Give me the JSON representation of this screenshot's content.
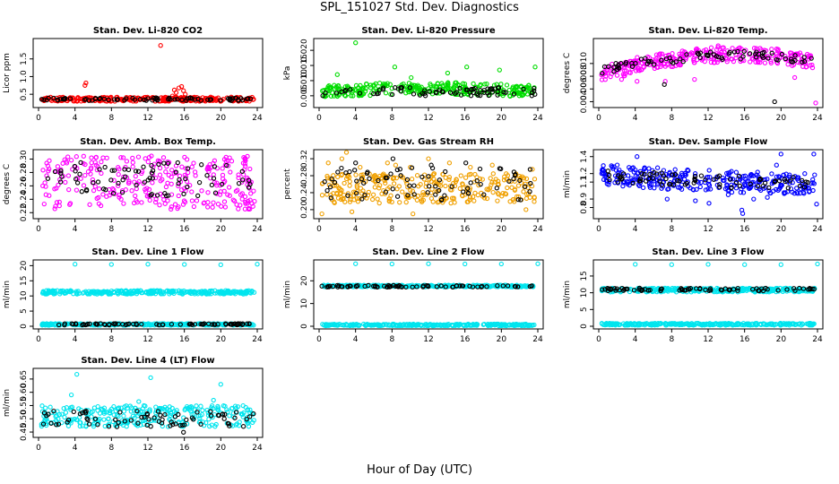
{
  "figure": {
    "title": "SPL_151027  Std. Dev. Diagnostics",
    "xlabel": "Hour of Day (UTC)"
  },
  "colors": {
    "red": "#ff0000",
    "green": "#00dd00",
    "magenta": "#ff00ff",
    "orange": "#f0a000",
    "blue": "#0000ff",
    "cyan": "#00e5ee",
    "black": "#000000"
  },
  "chart_data": [
    {
      "type": "scatter",
      "title": "Stan. Dev. Li-820 CO2",
      "ylabel": "Licor ppm",
      "xlim": [
        0,
        24
      ],
      "xticks": [
        "0",
        "4",
        "8",
        "12",
        "16",
        "20",
        "24"
      ],
      "ylim": [
        0.2,
        2.0
      ],
      "yticks": [
        "0.5",
        "1.0",
        "1.5"
      ],
      "ytick_values": [
        0.5,
        1.0,
        1.5
      ],
      "grid": false,
      "series": [
        {
          "color": "#ff0000",
          "band": [
            0.3,
            0.42
          ],
          "points": [
            [
              5.1,
              0.75
            ],
            [
              5.2,
              0.82
            ],
            [
              13.4,
              1.88
            ],
            [
              14.7,
              0.45
            ],
            [
              15.1,
              0.55
            ],
            [
              15.4,
              0.68
            ],
            [
              15.7,
              0.72
            ],
            [
              15.9,
              0.6
            ],
            [
              16.1,
              0.5
            ],
            [
              14.9,
              0.62
            ]
          ]
        },
        {
          "color": "#000000",
          "band": [
            0.32,
            0.4
          ],
          "points": []
        }
      ]
    },
    {
      "type": "scatter",
      "title": "Stan. Dev. Li-820 Pressure",
      "ylabel": "kPa",
      "xlim": [
        0,
        24
      ],
      "xticks": [
        "0",
        "4",
        "8",
        "12",
        "16",
        "20",
        "24"
      ],
      "ylim": [
        0.002,
        0.023
      ],
      "yticks": [
        "0.005",
        "0.010",
        "0.015",
        "0.020"
      ],
      "ytick_values": [
        0.005,
        0.01,
        0.015,
        0.02
      ],
      "grid": false,
      "series": [
        {
          "color": "#00dd00",
          "band": [
            0.0045,
            0.0085
          ],
          "trend": [
            0.0,
            0.0005,
            0.001,
            0.001,
            0.0005,
            0.0
          ],
          "points": [
            [
              4.0,
              0.0225
            ],
            [
              8.3,
              0.0145
            ],
            [
              14.1,
              0.0125
            ],
            [
              16.2,
              0.0145
            ],
            [
              19.8,
              0.0135
            ],
            [
              23.7,
              0.0145
            ],
            [
              2.0,
              0.012
            ],
            [
              10.1,
              0.011
            ]
          ]
        },
        {
          "color": "#000000",
          "band": [
            0.005,
            0.008
          ],
          "points": []
        }
      ]
    },
    {
      "type": "scatter",
      "title": "Stan. Dev. Li-820 Temp.",
      "ylabel": "degrees C",
      "xlim": [
        0,
        24
      ],
      "xticks": [
        "0",
        "4",
        "8",
        "12",
        "16",
        "20",
        "24"
      ],
      "ylim": [
        0.0035,
        0.0135
      ],
      "yticks": [
        "0.004",
        "0.006",
        "0.008",
        "0.010"
      ],
      "ytick_values": [
        0.004,
        0.006,
        0.008,
        0.01
      ],
      "grid": false,
      "series": [
        {
          "color": "#ff00ff",
          "band": [
            0.0088,
            0.0112
          ],
          "trend": [
            -0.0018,
            0.0,
            0.001,
            0.0015,
            0.0012,
            0.0002
          ],
          "points": [
            [
              0.5,
              0.0083
            ],
            [
              2.5,
              0.0075
            ],
            [
              4.2,
              0.0072
            ],
            [
              7.3,
              0.0072
            ],
            [
              10.5,
              0.0075
            ],
            [
              23.8,
              0.0038
            ],
            [
              21.5,
              0.0078
            ],
            [
              13.1,
              0.0128
            ]
          ]
        },
        {
          "color": "#000000",
          "band": [
            0.0095,
            0.0108
          ],
          "trend": [
            -0.0012,
            0.0,
            0.0008,
            0.0012,
            0.0009,
            0.0002
          ],
          "points": [
            [
              7.2,
              0.0067
            ],
            [
              19.3,
              0.004
            ],
            [
              12.0,
              0.0112
            ]
          ]
        }
      ]
    },
    {
      "type": "scatter",
      "title": "Stan. Dev. Amb. Box Temp.",
      "ylabel": "degrees C",
      "xlim": [
        0,
        24
      ],
      "xticks": [
        "0",
        "4",
        "8",
        "12",
        "16",
        "20",
        "24"
      ],
      "ylim": [
        0.215,
        0.31
      ],
      "yticks": [
        "0.22",
        "0.24",
        "0.26",
        "0.28",
        "0.30"
      ],
      "ytick_values": [
        0.22,
        0.24,
        0.26,
        0.28,
        0.3
      ],
      "grid": false,
      "series": [
        {
          "color": "#ff00ff",
          "band": [
            0.225,
            0.305
          ],
          "points": []
        },
        {
          "color": "#000000",
          "band": [
            0.245,
            0.295
          ],
          "points": []
        }
      ]
    },
    {
      "type": "scatter",
      "title": "Stan. Dev. Gas Stream RH",
      "ylabel": "percent",
      "xlim": [
        0,
        24
      ],
      "xticks": [
        "0",
        "4",
        "8",
        "12",
        "16",
        "20",
        "24"
      ],
      "ylim": [
        0.185,
        0.335
      ],
      "yticks": [
        "0.20",
        "0.24",
        "0.28",
        "0.32"
      ],
      "ytick_values": [
        0.2,
        0.24,
        0.28,
        0.32
      ],
      "grid": false,
      "series": [
        {
          "color": "#f0a000",
          "band": [
            0.215,
            0.285
          ],
          "points": [
            [
              1.0,
              0.31
            ],
            [
              2.5,
              0.32
            ],
            [
              3.0,
              0.335
            ],
            [
              4.5,
              0.3
            ],
            [
              7.5,
              0.31
            ],
            [
              8.4,
              0.305
            ],
            [
              10.0,
              0.3
            ],
            [
              12.0,
              0.32
            ],
            [
              14.3,
              0.31
            ],
            [
              16.6,
              0.3
            ],
            [
              19.0,
              0.305
            ],
            [
              23.4,
              0.295
            ],
            [
              0.3,
              0.19
            ],
            [
              3.6,
              0.195
            ],
            [
              10.3,
              0.19
            ],
            [
              22.7,
              0.2
            ]
          ]
        },
        {
          "color": "#000000",
          "band": [
            0.22,
            0.3
          ],
          "points": [
            [
              8.1,
              0.32
            ],
            [
              4.0,
              0.31
            ],
            [
              12.3,
              0.305
            ],
            [
              16.1,
              0.31
            ]
          ]
        }
      ]
    },
    {
      "type": "scatter",
      "title": "Stan. Dev. Sample Flow",
      "ylabel": "ml/min",
      "xlim": [
        0,
        24
      ],
      "xticks": [
        "0",
        "4",
        "8",
        "12",
        "16",
        "20",
        "24"
      ],
      "ylim": [
        0.7,
        1.45
      ],
      "yticks": [
        "0.8",
        "0.9",
        "1.1",
        "1.2",
        "1.4"
      ],
      "ytick_values": [
        0.8,
        0.9,
        1.1,
        1.2,
        1.4
      ],
      "grid": false,
      "series": [
        {
          "color": "#0000ff",
          "band": [
            1.0,
            1.25
          ],
          "trend": [
            0.08,
            0.03,
            0.0,
            -0.02,
            -0.04,
            -0.05
          ],
          "points": [
            [
              4.2,
              1.4
            ],
            [
              7.5,
              0.9
            ],
            [
              10.6,
              0.88
            ],
            [
              12.1,
              0.85
            ],
            [
              15.7,
              0.77
            ],
            [
              15.8,
              0.73
            ],
            [
              17.0,
              0.9
            ],
            [
              19.5,
              1.3
            ],
            [
              20.0,
              1.43
            ],
            [
              23.6,
              1.43
            ],
            [
              23.9,
              0.84
            ],
            [
              18.5,
              0.92
            ],
            [
              14.2,
              0.95
            ]
          ]
        },
        {
          "color": "#000000",
          "band": [
            1.05,
            1.2
          ],
          "trend": [
            0.05,
            0.02,
            0.0,
            -0.02,
            -0.03,
            -0.04
          ],
          "points": []
        }
      ]
    },
    {
      "type": "scatter",
      "title": "Stan. Dev. Line 1 Flow",
      "ylabel": "ml/min",
      "xlim": [
        0,
        24
      ],
      "xticks": [
        "0",
        "4",
        "8",
        "12",
        "16",
        "20",
        "24"
      ],
      "ylim": [
        0,
        21
      ],
      "yticks": [
        "0",
        "5",
        "10",
        "15",
        "20"
      ],
      "ytick_values": [
        0,
        5,
        10,
        15,
        20
      ],
      "grid": false,
      "series": [
        {
          "color": "#00e5ee",
          "band": [
            10.6,
            11.8
          ],
          "points": [
            [
              4.0,
              20.5
            ],
            [
              8.0,
              20.4
            ],
            [
              12.0,
              20.5
            ],
            [
              16.0,
              20.4
            ],
            [
              20.0,
              20.3
            ],
            [
              24.0,
              20.5
            ]
          ]
        },
        {
          "color": "#00e5ee",
          "band": [
            0.3,
            0.9
          ],
          "points": []
        },
        {
          "color": "#000000",
          "band": [
            0.4,
            0.9
          ],
          "points": []
        }
      ]
    },
    {
      "type": "scatter",
      "title": "Stan. Dev. Line 2 Flow",
      "ylabel": "ml/min",
      "xlim": [
        0,
        24
      ],
      "xticks": [
        "0",
        "4",
        "8",
        "12",
        "16",
        "20",
        "24"
      ],
      "ylim": [
        0,
        28
      ],
      "yticks": [
        "0",
        "10",
        "20"
      ],
      "ytick_values": [
        0,
        10,
        20
      ],
      "grid": false,
      "series": [
        {
          "color": "#00e5ee",
          "band": [
            17.3,
            18.1
          ],
          "points": [
            [
              4.0,
              27.5
            ],
            [
              8.0,
              27.4
            ],
            [
              12.0,
              27.5
            ],
            [
              16.0,
              27.4
            ],
            [
              20.0,
              27.4
            ],
            [
              24.0,
              27.5
            ]
          ]
        },
        {
          "color": "#000000",
          "band": [
            17.2,
            18.0
          ],
          "points": []
        },
        {
          "color": "#00e5ee",
          "band": [
            0.2,
            1.0
          ],
          "points": []
        }
      ]
    },
    {
      "type": "scatter",
      "title": "Stan. Dev. Line 3 Flow",
      "ylabel": "ml/min",
      "xlim": [
        0,
        24
      ],
      "xticks": [
        "0",
        "4",
        "8",
        "12",
        "16",
        "20",
        "24"
      ],
      "ylim": [
        0,
        19
      ],
      "yticks": [
        "0",
        "5",
        "10",
        "15"
      ],
      "ytick_values": [
        0,
        5,
        10,
        15
      ],
      "grid": false,
      "series": [
        {
          "color": "#00e5ee",
          "band": [
            10.2,
            11.4
          ],
          "points": [
            [
              4.0,
              18.5
            ],
            [
              8.0,
              18.4
            ],
            [
              12.0,
              18.5
            ],
            [
              16.0,
              18.4
            ],
            [
              20.0,
              18.4
            ],
            [
              24.0,
              18.6
            ]
          ]
        },
        {
          "color": "#000000",
          "band": [
            10.6,
            11.4
          ],
          "points": []
        },
        {
          "color": "#00e5ee",
          "band": [
            0.3,
            0.9
          ],
          "points": []
        }
      ]
    },
    {
      "type": "scatter",
      "title": "Stan. Dev. Line 4 (LT) Flow",
      "ylabel": "ml/min",
      "xlim": [
        0,
        24
      ],
      "xticks": [
        "0",
        "4",
        "8",
        "12",
        "16",
        "20",
        "24"
      ],
      "ylim": [
        0.44,
        0.68
      ],
      "yticks": [
        "0.45",
        "0.50",
        "0.55",
        "0.60",
        "0.65"
      ],
      "ytick_values": [
        0.45,
        0.5,
        0.55,
        0.6,
        0.65
      ],
      "grid": false,
      "series": [
        {
          "color": "#00e5ee",
          "band": [
            0.47,
            0.55
          ],
          "points": [
            [
              4.2,
              0.668
            ],
            [
              12.3,
              0.655
            ],
            [
              20.0,
              0.63
            ],
            [
              3.6,
              0.59
            ],
            [
              11.0,
              0.565
            ],
            [
              19.2,
              0.57
            ]
          ]
        },
        {
          "color": "#000000",
          "band": [
            0.47,
            0.53
          ],
          "points": [
            [
              15.9,
              0.449
            ]
          ]
        }
      ]
    }
  ]
}
